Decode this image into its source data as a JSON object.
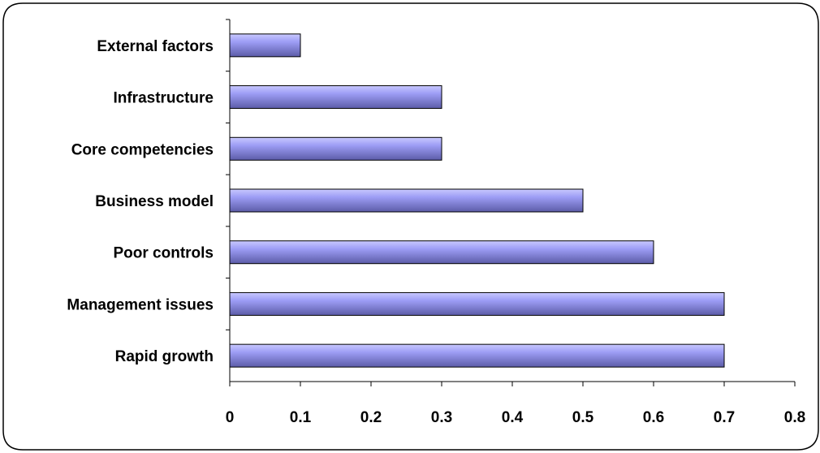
{
  "chart_data": {
    "type": "bar",
    "orientation": "horizontal",
    "categories": [
      "Rapid growth",
      "Management issues",
      "Poor controls",
      "Business model",
      "Core competencies",
      "Infrastructure",
      "External factors"
    ],
    "values": [
      0.7,
      0.7,
      0.6,
      0.5,
      0.3,
      0.3,
      0.1
    ],
    "xlim": [
      0,
      0.8
    ],
    "xticks": [
      "0",
      "0.1",
      "0.2",
      "0.3",
      "0.4",
      "0.5",
      "0.6",
      "0.7",
      "0.8"
    ],
    "title": "",
    "xlabel": "",
    "ylabel": "",
    "grid": false,
    "legend": "none",
    "colors": {
      "bar_light": "#c9c9ff",
      "bar_mid": "#9d9df5",
      "bar_dark": "#5c5ca8",
      "bar_edge": "#000000",
      "frame": "#000000"
    }
  }
}
